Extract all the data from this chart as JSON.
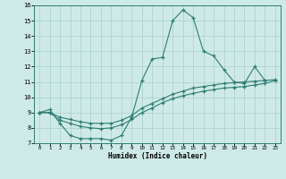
{
  "xlabel": "Humidex (Indice chaleur)",
  "bg_color": "#ceeae7",
  "grid_color": "#aacfcc",
  "line_color": "#2e7d72",
  "xlim": [
    -0.5,
    23.5
  ],
  "ylim": [
    7,
    16
  ],
  "xticks": [
    0,
    1,
    2,
    3,
    4,
    5,
    6,
    7,
    8,
    9,
    10,
    11,
    12,
    13,
    14,
    15,
    16,
    17,
    18,
    19,
    20,
    21,
    22,
    23
  ],
  "yticks": [
    7,
    8,
    9,
    10,
    11,
    12,
    13,
    14,
    15,
    16
  ],
  "series1_x": [
    0,
    1,
    2,
    3,
    4,
    5,
    6,
    7,
    8,
    9,
    10,
    11,
    12,
    13,
    14,
    15,
    16,
    17,
    18,
    19,
    20,
    21,
    22
  ],
  "series1_y": [
    9.0,
    9.2,
    8.3,
    7.5,
    7.3,
    7.3,
    7.3,
    7.2,
    7.5,
    8.7,
    11.1,
    12.5,
    12.6,
    15.0,
    15.7,
    15.2,
    13.0,
    12.7,
    11.8,
    11.0,
    10.9,
    12.0,
    11.1
  ],
  "series2_x": [
    0,
    1,
    2,
    3,
    4,
    5,
    6,
    7,
    8,
    9,
    10,
    11,
    12,
    13,
    14,
    15,
    16,
    17,
    18,
    19,
    20,
    21,
    22,
    23
  ],
  "series2_y": [
    9.0,
    9.0,
    8.7,
    8.55,
    8.4,
    8.3,
    8.3,
    8.3,
    8.5,
    8.8,
    9.3,
    9.6,
    9.9,
    10.2,
    10.4,
    10.6,
    10.7,
    10.8,
    10.9,
    10.95,
    11.0,
    11.05,
    11.1,
    11.15
  ],
  "series3_x": [
    0,
    1,
    2,
    3,
    4,
    5,
    6,
    7,
    8,
    9,
    10,
    11,
    12,
    13,
    14,
    15,
    16,
    17,
    18,
    19,
    20,
    21,
    22,
    23
  ],
  "series3_y": [
    9.0,
    9.0,
    8.5,
    8.3,
    8.1,
    8.0,
    7.95,
    8.0,
    8.2,
    8.55,
    9.0,
    9.3,
    9.65,
    9.9,
    10.1,
    10.25,
    10.4,
    10.5,
    10.6,
    10.65,
    10.7,
    10.8,
    10.9,
    11.1
  ]
}
